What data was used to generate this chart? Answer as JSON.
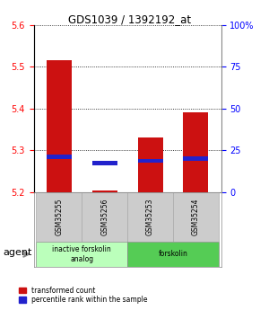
{
  "title": "GDS1039 / 1392192_at",
  "samples": [
    "GSM35255",
    "GSM35256",
    "GSM35253",
    "GSM35254"
  ],
  "red_values": [
    5.515,
    5.205,
    5.33,
    5.39
  ],
  "blue_values": [
    5.285,
    5.27,
    5.275,
    5.28
  ],
  "y_min": 5.2,
  "y_max": 5.6,
  "y_ticks": [
    5.2,
    5.3,
    5.4,
    5.5,
    5.6
  ],
  "right_y_ticks": [
    0,
    25,
    50,
    75,
    100
  ],
  "right_y_labels": [
    "0",
    "25",
    "50",
    "75",
    "100%"
  ],
  "groups": [
    {
      "label": "inactive forskolin\nanalog",
      "color": "#bbffbb",
      "indices": [
        0,
        1
      ]
    },
    {
      "label": "forskolin",
      "color": "#55cc55",
      "indices": [
        2,
        3
      ]
    }
  ],
  "bar_bottom": 5.2,
  "bar_width": 0.55,
  "red_color": "#cc1111",
  "blue_color": "#2222cc",
  "legend_red": "transformed count",
  "legend_blue": "percentile rank within the sample",
  "agent_label": "agent",
  "background_color": "#ffffff"
}
